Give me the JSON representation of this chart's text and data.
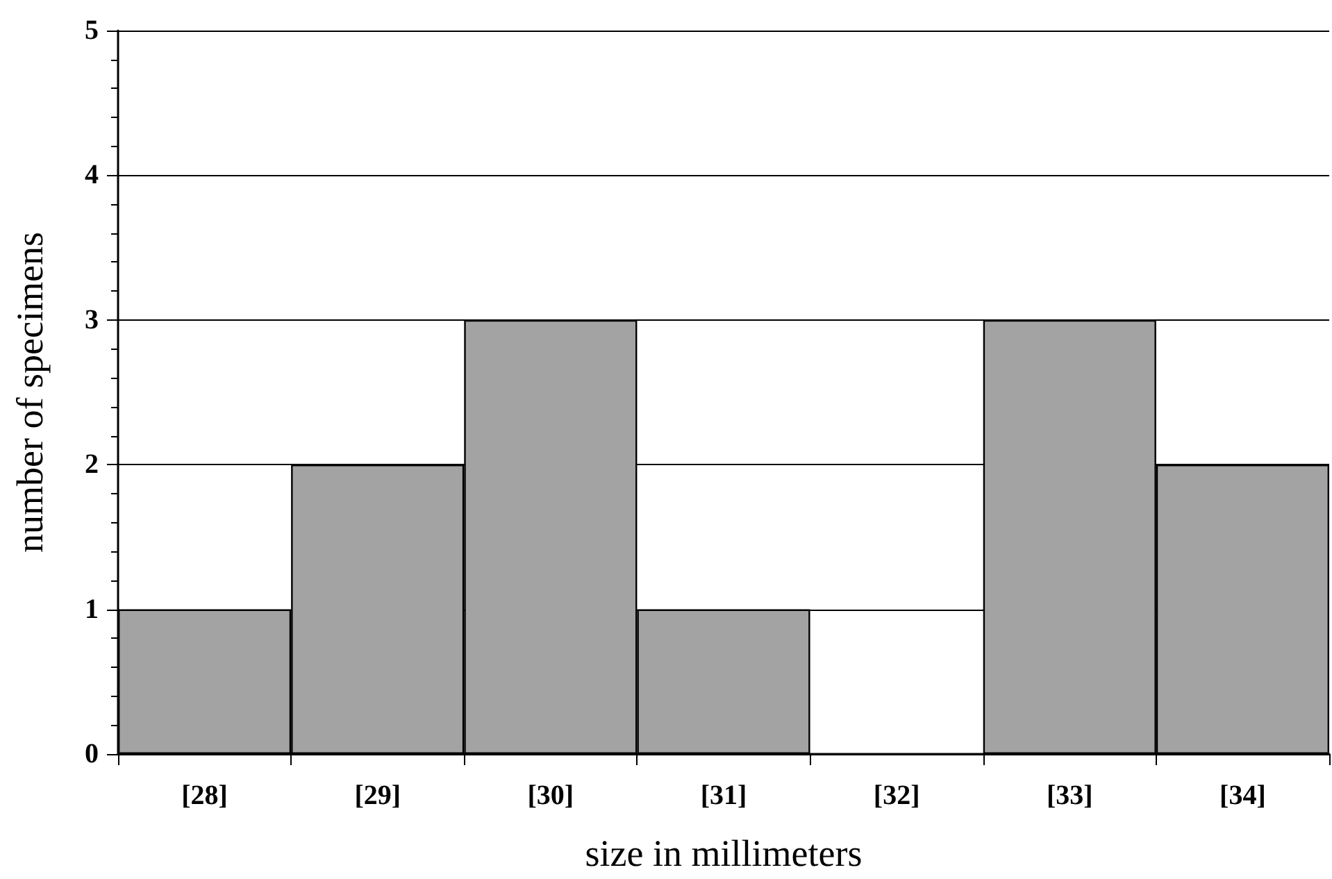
{
  "chart_data": {
    "type": "bar",
    "xlabel": "size in millimeters",
    "ylabel": "number of specimens",
    "categories": [
      "[28]",
      "[29]",
      "[30]",
      "[31]",
      "[32]",
      "[33]",
      "[34]"
    ],
    "values": [
      1,
      2,
      3,
      1,
      0,
      3,
      2
    ],
    "color": "#a3a3a3",
    "ylim": [
      0,
      5
    ],
    "yticks": [
      0,
      1,
      2,
      3,
      4,
      5
    ],
    "grid": "y"
  }
}
